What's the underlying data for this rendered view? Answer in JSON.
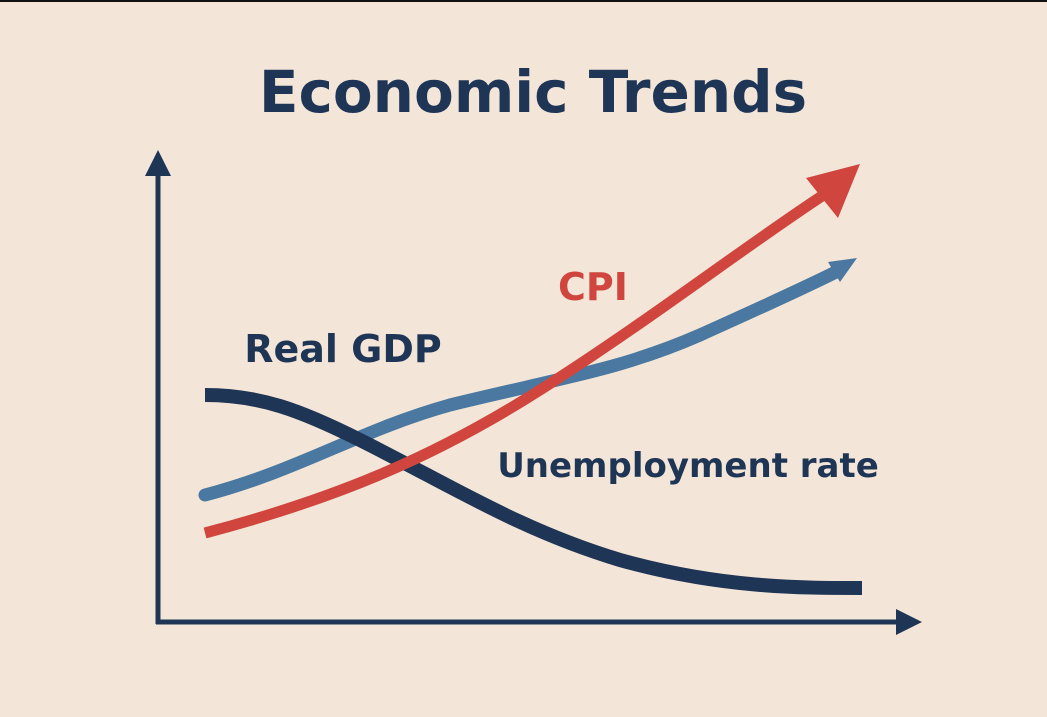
{
  "title": "Economic Trends",
  "labels": {
    "cpi": "CPI",
    "real_gdp": "Real GDP",
    "unemployment": "Unemployment rate"
  }
}
